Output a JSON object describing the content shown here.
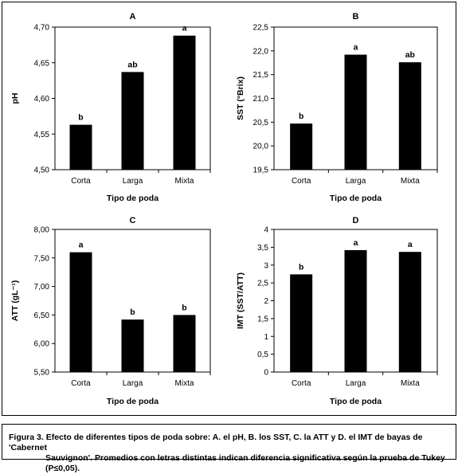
{
  "chart_data": [
    {
      "panel": "A",
      "type": "bar",
      "categories": [
        "Corta",
        "Larga",
        "Mixta"
      ],
      "values": [
        4.563,
        4.637,
        4.688
      ],
      "letters": [
        "b",
        "ab",
        "a"
      ],
      "xlabel": "Tipo de poda",
      "ylabel": "pH",
      "ylim": [
        4.5,
        4.7
      ],
      "yticks": [
        "4,50",
        "4,55",
        "4,60",
        "4,65",
        "4,70"
      ],
      "grid": false
    },
    {
      "panel": "B",
      "type": "bar",
      "categories": [
        "Corta",
        "Larga",
        "Mixta"
      ],
      "values": [
        20.47,
        21.92,
        21.76
      ],
      "letters": [
        "b",
        "a",
        "ab"
      ],
      "xlabel": "Tipo de poda",
      "ylabel": "SST (°Brix)",
      "ylim": [
        19.5,
        22.5
      ],
      "yticks": [
        "19,5",
        "20,0",
        "20,5",
        "21,0",
        "21,5",
        "22,0",
        "22,5"
      ],
      "grid": false
    },
    {
      "panel": "C",
      "type": "bar",
      "categories": [
        "Corta",
        "Larga",
        "Mixta"
      ],
      "values": [
        7.6,
        6.42,
        6.5
      ],
      "letters": [
        "a",
        "b",
        "b"
      ],
      "xlabel": "Tipo de poda",
      "ylabel": "ATT (gL⁻¹)",
      "ylim": [
        5.5,
        8.0
      ],
      "yticks": [
        "5,50",
        "6,00",
        "6,50",
        "7,00",
        "7,50",
        "8,00"
      ],
      "grid": false
    },
    {
      "panel": "D",
      "type": "bar",
      "categories": [
        "Corta",
        "Larga",
        "Mixta"
      ],
      "values": [
        2.74,
        3.42,
        3.37
      ],
      "letters": [
        "b",
        "a",
        "a"
      ],
      "xlabel": "Tipo de poda",
      "ylabel": "IMT (SST/ATT)",
      "ylim": [
        0,
        4
      ],
      "yticks": [
        "0",
        "0,5",
        "1",
        "1,5",
        "2",
        "2,5",
        "3",
        "3,5",
        "4"
      ],
      "grid": false
    }
  ],
  "caption": {
    "label": "Figura 3.",
    "line1": "Efecto de diferentes tipos de poda sobre: A. el pH, B. los SST, C. la ATT y D. el IMT de bayas de 'Cabernet",
    "line2": "Sauvignon'. Promedios con letras distintas indican diferencia significativa según la prueba de Tukey (P≤0,05)."
  },
  "colors": {
    "bar": "#000000",
    "axis": "#000000",
    "background": "#ffffff"
  }
}
